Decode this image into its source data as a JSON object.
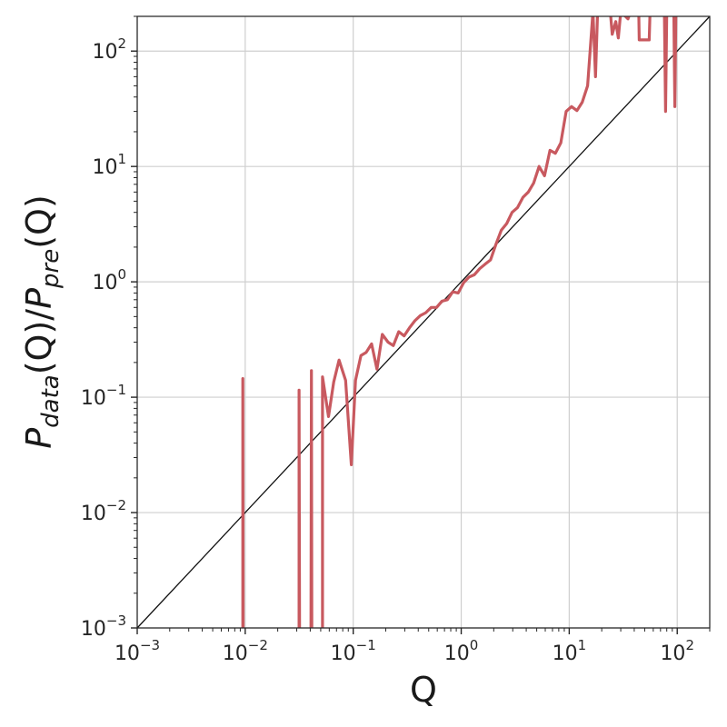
{
  "chart_data": {
    "type": "line",
    "xlabel": "Q",
    "ylabel": {
      "base1": "P",
      "sub1": "data",
      "mid": "(Q)/",
      "base2": "P",
      "sub2": "pre",
      "end": "(Q)"
    },
    "xscale": "log",
    "yscale": "log",
    "xlim": [
      0.001,
      200
    ],
    "ylim": [
      0.001,
      200
    ],
    "grid": true,
    "xticks": [
      {
        "value": 0.001,
        "base": "10",
        "exp": "−3"
      },
      {
        "value": 0.01,
        "base": "10",
        "exp": "−2"
      },
      {
        "value": 0.1,
        "base": "10",
        "exp": "−1"
      },
      {
        "value": 1,
        "base": "10",
        "exp": "0"
      },
      {
        "value": 10,
        "base": "10",
        "exp": "1"
      },
      {
        "value": 100,
        "base": "10",
        "exp": "2"
      }
    ],
    "yticks": [
      {
        "value": 0.001,
        "base": "10",
        "exp": "−3"
      },
      {
        "value": 0.01,
        "base": "10",
        "exp": "−2"
      },
      {
        "value": 0.1,
        "base": "10",
        "exp": "−1"
      },
      {
        "value": 1,
        "base": "10",
        "exp": "0"
      },
      {
        "value": 10,
        "base": "10",
        "exp": "1"
      },
      {
        "value": 100,
        "base": "10",
        "exp": "2"
      }
    ],
    "series": [
      {
        "color": "#c8595f",
        "points": [
          [
            0.0095,
            0.0001
          ],
          [
            0.0095,
            0.145
          ],
          [
            0.0096,
            0.0001
          ],
          [
            0.0315,
            0.0001
          ],
          [
            0.0315,
            0.115
          ],
          [
            0.032,
            0.0001
          ],
          [
            0.0405,
            0.0001
          ],
          [
            0.041,
            0.17
          ],
          [
            0.0415,
            0.0001
          ],
          [
            0.052,
            0.0001
          ],
          [
            0.052,
            0.15
          ],
          [
            0.059,
            0.068
          ],
          [
            0.066,
            0.135
          ],
          [
            0.074,
            0.21
          ],
          [
            0.085,
            0.14
          ],
          [
            0.096,
            0.026
          ],
          [
            0.105,
            0.14
          ],
          [
            0.118,
            0.23
          ],
          [
            0.132,
            0.245
          ],
          [
            0.148,
            0.29
          ],
          [
            0.166,
            0.175
          ],
          [
            0.186,
            0.35
          ],
          [
            0.21,
            0.3
          ],
          [
            0.235,
            0.28
          ],
          [
            0.264,
            0.37
          ],
          [
            0.296,
            0.34
          ],
          [
            0.332,
            0.4
          ],
          [
            0.373,
            0.46
          ],
          [
            0.418,
            0.51
          ],
          [
            0.469,
            0.54
          ],
          [
            0.527,
            0.6
          ],
          [
            0.591,
            0.6
          ],
          [
            0.663,
            0.68
          ],
          [
            0.744,
            0.7
          ],
          [
            0.835,
            0.82
          ],
          [
            0.937,
            0.8
          ],
          [
            1.05,
            0.98
          ],
          [
            1.18,
            1.1
          ],
          [
            1.32,
            1.15
          ],
          [
            1.48,
            1.3
          ],
          [
            1.66,
            1.42
          ],
          [
            1.87,
            1.55
          ],
          [
            2.09,
            2.1
          ],
          [
            2.35,
            2.8
          ],
          [
            2.64,
            3.2
          ],
          [
            2.96,
            4.0
          ],
          [
            3.32,
            4.4
          ],
          [
            3.73,
            5.4
          ],
          [
            4.18,
            6.0
          ],
          [
            4.69,
            7.2
          ],
          [
            5.26,
            10.0
          ],
          [
            5.91,
            8.3
          ],
          [
            6.63,
            13.8
          ],
          [
            7.44,
            13.0
          ],
          [
            8.35,
            16.0
          ],
          [
            9.37,
            30.0
          ],
          [
            10.5,
            33.0
          ],
          [
            11.8,
            30.5
          ],
          [
            13.2,
            36.0
          ],
          [
            14.8,
            50.0
          ],
          [
            16.6,
            220
          ],
          [
            17.5,
            60
          ],
          [
            18.3,
            220
          ],
          [
            24.0,
            220
          ],
          [
            25.0,
            140
          ],
          [
            27.0,
            180
          ],
          [
            28.5,
            130
          ],
          [
            30.0,
            220
          ],
          [
            35.0,
            190
          ],
          [
            37.0,
            220
          ],
          [
            44.0,
            220
          ],
          [
            44.5,
            125
          ],
          [
            55.0,
            125
          ],
          [
            56.0,
            220
          ],
          [
            76.0,
            220
          ],
          [
            78.0,
            30
          ],
          [
            80.0,
            220
          ],
          [
            93.0,
            220
          ],
          [
            95.0,
            33
          ],
          [
            97.0,
            220
          ]
        ]
      }
    ],
    "reference_line": {
      "type": "y=x",
      "color": "#111111"
    }
  }
}
